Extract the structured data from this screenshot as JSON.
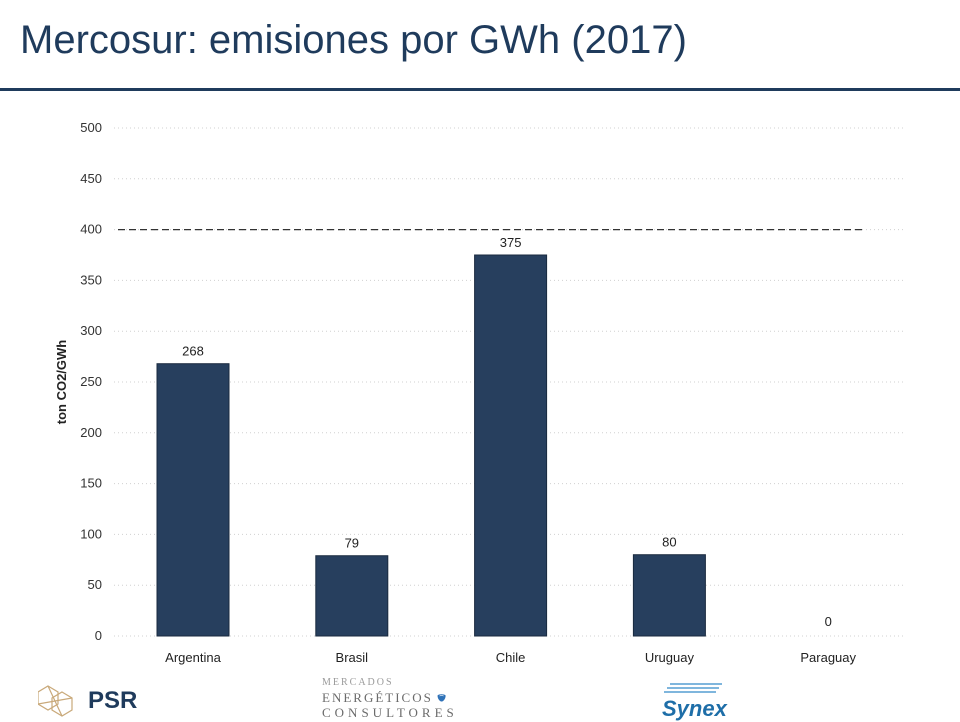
{
  "page": {
    "title": "Mercosur: emisiones por GWh (2017)"
  },
  "chart_data": {
    "type": "bar",
    "categories": [
      "Argentina",
      "Brasil",
      "Chile",
      "Uruguay",
      "Paraguay"
    ],
    "values": [
      268,
      79,
      375,
      80,
      0
    ],
    "value_labels": [
      "268",
      "79",
      "375",
      "80",
      "0"
    ],
    "ylabel": "ton CO2/GWh",
    "xlabel": "",
    "ylim": [
      0,
      500
    ],
    "yticks": [
      0,
      50,
      100,
      150,
      200,
      250,
      300,
      350,
      400,
      450,
      500
    ],
    "reference_line": {
      "value": 400,
      "style": "dashed"
    },
    "grid": true,
    "bar_color": "#273f5e"
  },
  "footer": {
    "logos": {
      "psr": {
        "text": "PSR",
        "icon": "hexagon-network-icon"
      },
      "mec": {
        "top": "MERCADOS",
        "middle": "ENERGÉTICOS",
        "bottom": "CONSULTORES",
        "icon": "blue-drop-icon"
      },
      "synex": {
        "text": "Synex",
        "icon": "synex-stripes-icon"
      }
    }
  }
}
